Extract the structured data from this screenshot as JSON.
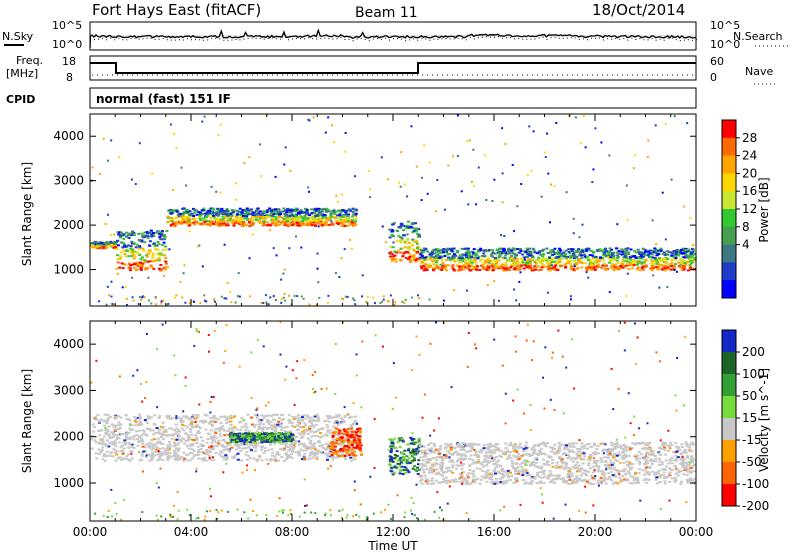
{
  "header": {
    "station": "Fort Hays East (fitACF)",
    "beam": "Beam 11",
    "date": "18/Oct/2014"
  },
  "noise_panel": {
    "left_label": "N.Sky",
    "left_ticks": [
      "10^5",
      "10^0"
    ],
    "right_ticks": [
      "10^5",
      "10^0"
    ],
    "right_label": "N.Search"
  },
  "freq_panel": {
    "left_label_1": "Freq.",
    "left_label_2": "[MHz]",
    "left_ticks": [
      "18",
      "8"
    ],
    "right_ticks": [
      "60",
      "0"
    ],
    "right_label": "Nave"
  },
  "cpid": {
    "label": "CPID",
    "mode": "normal (fast) 151 IF"
  },
  "chart_data": [
    {
      "type": "heatmap",
      "quantity": "Power",
      "ylabel": "Slant Range [km]",
      "ylim": [
        180,
        4500
      ],
      "yticks": [
        "4000",
        "3000",
        "2000",
        "1000"
      ],
      "xlim": [
        "00:00",
        "24:00"
      ],
      "colorbar_label": "Power [dB]",
      "colorbar_ticks": [
        "28",
        "24",
        "20",
        "16",
        "12",
        "8",
        "4"
      ],
      "colorbar_colors": [
        "#ff0000",
        "#ff6a00",
        "#ffa500",
        "#ffd700",
        "#c8e632",
        "#32c832",
        "#46a050",
        "#3c7882",
        "#1e3cc8",
        "#0000ff"
      ],
      "approx_bands": [
        {
          "from_ut": 0.0,
          "to_ut": 1.0,
          "range_km": [
            1500,
            1650
          ]
        },
        {
          "from_ut": 1.0,
          "to_ut": 3.0,
          "range_km": [
            1000,
            1900
          ]
        },
        {
          "from_ut": 3.0,
          "to_ut": 10.5,
          "range_km": [
            2000,
            2400
          ]
        },
        {
          "from_ut": 11.8,
          "to_ut": 13.0,
          "range_km": [
            1200,
            2100
          ]
        },
        {
          "from_ut": 13.0,
          "to_ut": 24.0,
          "range_km": [
            1000,
            1500
          ]
        }
      ]
    },
    {
      "type": "heatmap",
      "quantity": "Velocity",
      "ylabel": "Slant Range [km]",
      "ylim": [
        180,
        4500
      ],
      "yticks": [
        "4000",
        "3000",
        "2000",
        "1000"
      ],
      "xlim": [
        "00:00",
        "24:00"
      ],
      "xticks": [
        "00:00",
        "04:00",
        "08:00",
        "12:00",
        "16:00",
        "20:00",
        "00:00"
      ],
      "xlabel": "Time UT",
      "colorbar_label": "Velocity [m s^-1]",
      "colorbar_ticks": [
        "200",
        "100",
        "50",
        "15",
        "-15",
        "-50",
        "-100",
        "-200"
      ],
      "colorbar_colors": [
        "#1428c8",
        "#1e6428",
        "#32a032",
        "#78dc3c",
        "#c8c8c8",
        "#ffa000",
        "#ff6400",
        "#ff0000"
      ],
      "approx_features": [
        {
          "from_ut": 0.0,
          "to_ut": 10.5,
          "range_km": [
            1500,
            2500
          ],
          "velocity": "near zero"
        },
        {
          "from_ut": 5.5,
          "to_ut": 8.0,
          "range_km": [
            1900,
            2100
          ],
          "velocity": "positive"
        },
        {
          "from_ut": 9.5,
          "to_ut": 10.7,
          "range_km": [
            1600,
            2200
          ],
          "velocity": "negative"
        },
        {
          "from_ut": 11.8,
          "to_ut": 13.0,
          "range_km": [
            1200,
            2000
          ],
          "velocity": "positive"
        },
        {
          "from_ut": 13.0,
          "to_ut": 24.0,
          "range_km": [
            1000,
            1900
          ],
          "velocity": "near zero"
        }
      ]
    }
  ]
}
